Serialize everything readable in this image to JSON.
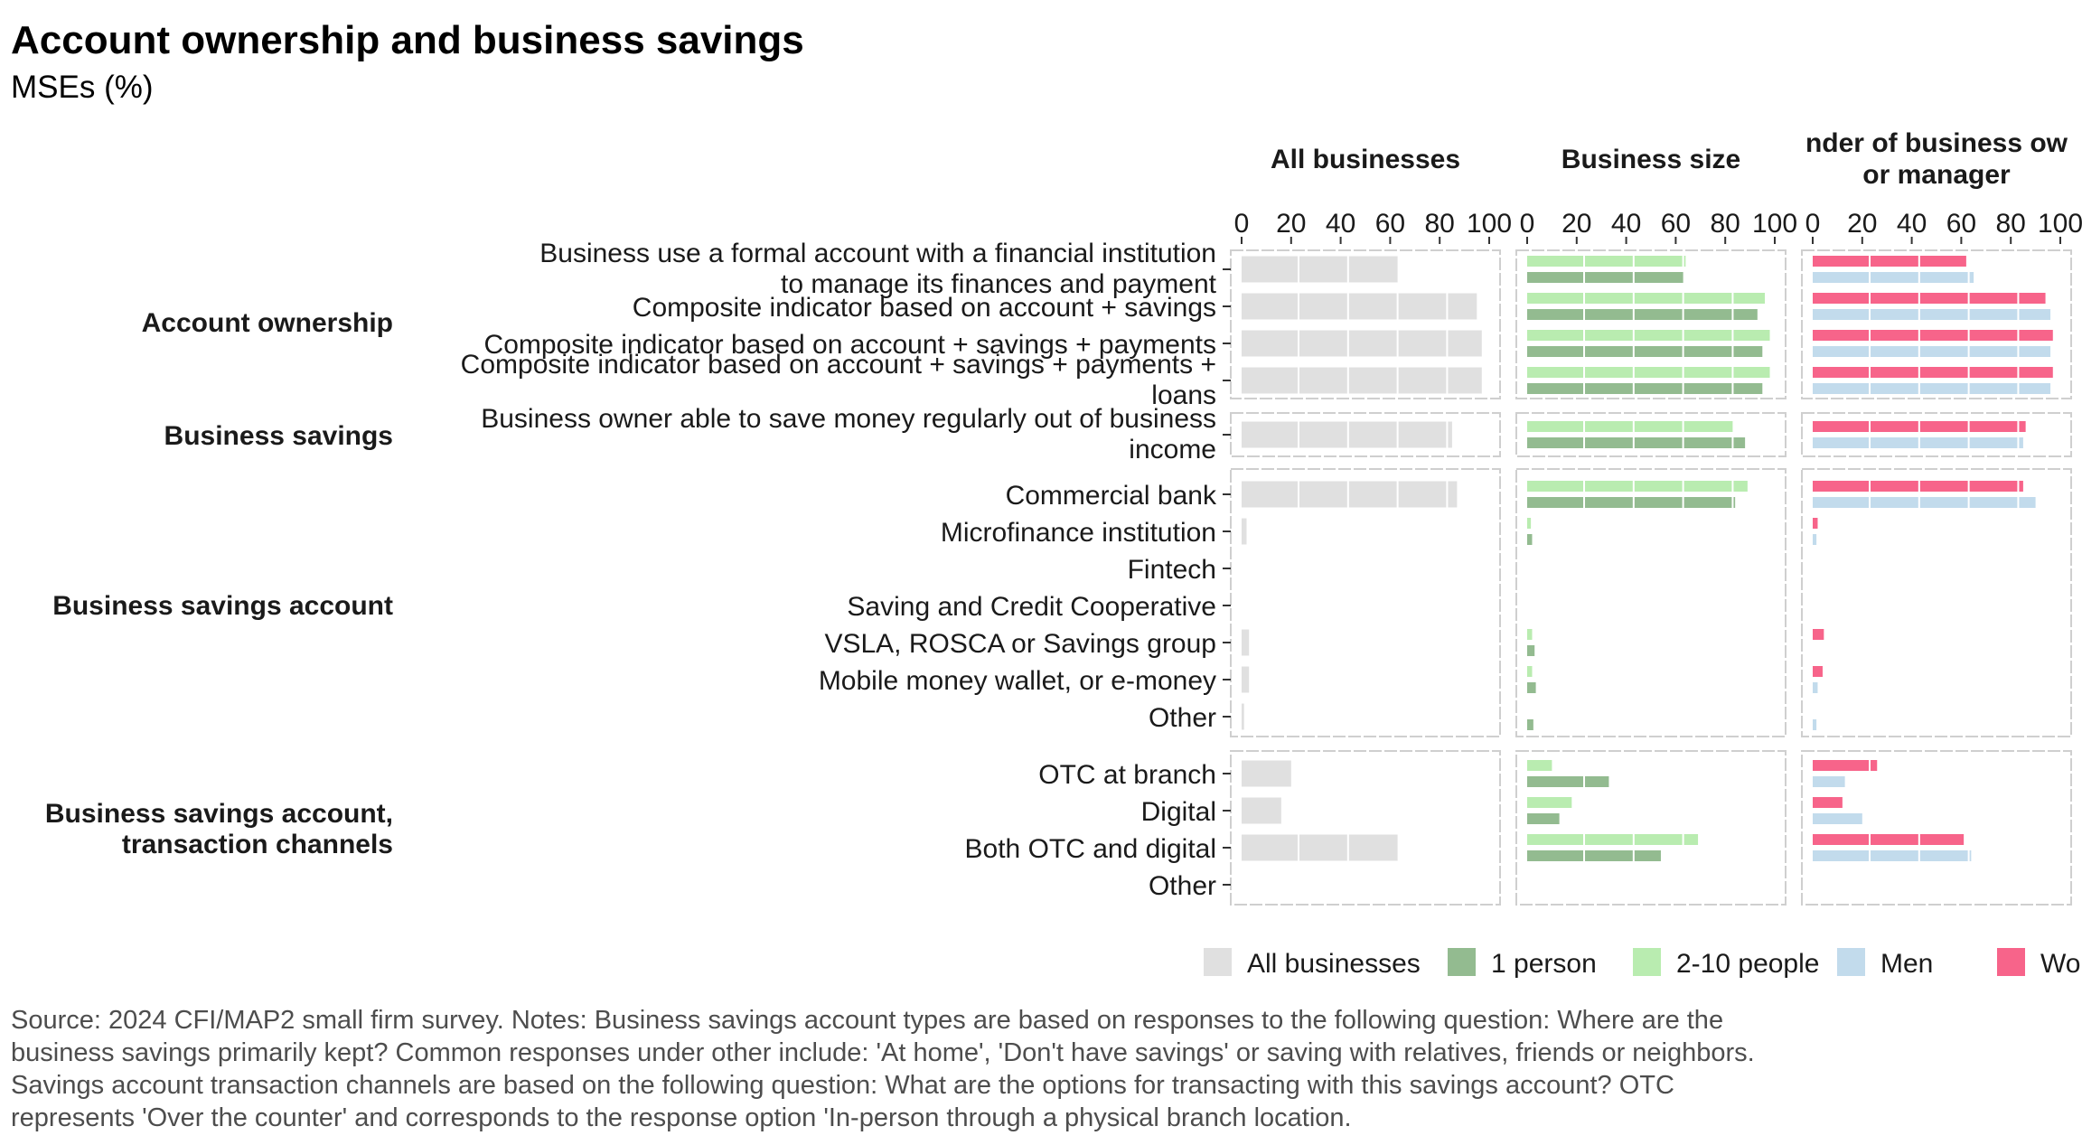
{
  "chart_data": {
    "type": "bar",
    "orientation": "horizontal",
    "title": "Account ownership and business savings",
    "subtitle": "MSEs (%)",
    "xlim": [
      0,
      100
    ],
    "x_ticks": [
      "0",
      "20",
      "40",
      "60",
      "80",
      "100"
    ],
    "grid": false,
    "legend_position": "bottom-right",
    "colors": {
      "All businesses": "#e0e0e0",
      "1 person": "#93bb90",
      "2-10 people": "#b9ecb0",
      "Men": "#c2dbec",
      "Women": "#f7648a"
    },
    "legend": [
      {
        "key": "All businesses",
        "label": "All businesses"
      },
      {
        "key": "1 person",
        "label": "1 person"
      },
      {
        "key": "2-10 people",
        "label": "2-10 people"
      },
      {
        "key": "Men",
        "label": "Men"
      },
      {
        "key": "Women",
        "label": "Wome"
      }
    ],
    "facets": [
      {
        "key": "all",
        "label": [
          "All businesses"
        ],
        "series": [
          "All businesses"
        ]
      },
      {
        "key": "size",
        "label": [
          "Business size"
        ],
        "series": [
          "2-10 people",
          "1 person"
        ]
      },
      {
        "key": "gender",
        "label": [
          "nder of business ow",
          "or manager"
        ],
        "series": [
          "Women",
          "Men"
        ]
      }
    ],
    "groups": [
      {
        "label": [
          "Account ownership"
        ],
        "rows": [
          {
            "label": [
              "Business use a formal account with a financial institution",
              "to manage its finances and payment"
            ],
            "values": {
              "All businesses": 63,
              "2-10 people": 64,
              "1 person": 63,
              "Women": 62,
              "Men": 65
            }
          },
          {
            "label": [
              "Composite indicator based on account + savings"
            ],
            "values": {
              "All businesses": 95,
              "2-10 people": 96,
              "1 person": 93,
              "Women": 94,
              "Men": 96
            }
          },
          {
            "label": [
              "Composite indicator based on account + savings + payments"
            ],
            "values": {
              "All businesses": 97,
              "2-10 people": 98,
              "1 person": 95,
              "Women": 97,
              "Men": 96
            }
          },
          {
            "label": [
              "Composite indicator based on account + savings + payments +",
              "loans"
            ],
            "values": {
              "All businesses": 97,
              "2-10 people": 98,
              "1 person": 95,
              "Women": 97,
              "Men": 96
            }
          }
        ]
      },
      {
        "label": [
          "Business savings"
        ],
        "rows": [
          {
            "label": [
              "Business owner able to save money regularly out of business",
              "income"
            ],
            "values": {
              "All businesses": 85,
              "2-10 people": 83,
              "1 person": 88,
              "Women": 86,
              "Men": 85
            }
          }
        ]
      },
      {
        "label": [
          "Business savings account"
        ],
        "rows": [
          {
            "label": [
              "Commercial bank"
            ],
            "values": {
              "All businesses": 87,
              "2-10 people": 89,
              "1 person": 84,
              "Women": 85,
              "Men": 90
            }
          },
          {
            "label": [
              "Microfinance institution"
            ],
            "values": {
              "All businesses": 2,
              "2-10 people": 1.5,
              "1 person": 2,
              "Women": 2,
              "Men": 1.5
            }
          },
          {
            "label": [
              "Fintech"
            ],
            "values": {
              "All businesses": 0,
              "2-10 people": 0,
              "1 person": 0,
              "Women": 0,
              "Men": 0
            }
          },
          {
            "label": [
              "Saving and Credit Cooperative"
            ],
            "values": {
              "All businesses": 0,
              "2-10 people": 0,
              "1 person": 0,
              "Women": 0,
              "Men": 0
            }
          },
          {
            "label": [
              "VSLA, ROSCA or Savings group"
            ],
            "values": {
              "All businesses": 3,
              "2-10 people": 2,
              "1 person": 3,
              "Women": 4.5,
              "Men": 0
            }
          },
          {
            "label": [
              "Mobile money wallet, or e-money"
            ],
            "values": {
              "All businesses": 3,
              "2-10 people": 2,
              "1 person": 3.5,
              "Women": 4,
              "Men": 2
            }
          },
          {
            "label": [
              "Other"
            ],
            "values": {
              "All businesses": 1,
              "2-10 people": 0,
              "1 person": 2.5,
              "Women": 0,
              "Men": 1.5
            }
          }
        ]
      },
      {
        "label": [
          "Business savings account,",
          "transaction channels"
        ],
        "rows": [
          {
            "label": [
              "OTC at branch"
            ],
            "values": {
              "All businesses": 20,
              "2-10 people": 10,
              "1 person": 33,
              "Women": 26,
              "Men": 13
            }
          },
          {
            "label": [
              "Digital"
            ],
            "values": {
              "All businesses": 16,
              "2-10 people": 18,
              "1 person": 13,
              "Women": 12,
              "Men": 20
            }
          },
          {
            "label": [
              "Both OTC and digital"
            ],
            "values": {
              "All businesses": 63,
              "2-10 people": 69,
              "1 person": 54,
              "Women": 61,
              "Men": 64
            }
          },
          {
            "label": [
              "Other"
            ],
            "values": {
              "All businesses": 0,
              "2-10 people": 0,
              "1 person": 0,
              "Women": 0,
              "Men": 0
            }
          }
        ]
      }
    ],
    "source": [
      "Source: 2024 CFI/MAP2 small firm survey. Notes: Business savings account types are based on responses to the following question: Where are the",
      "business savings primarily kept? Common responses under other include: 'At home', 'Don't have savings' or saving with relatives, friends or neighbors.",
      "Savings account transaction channels are based on the following question: What are the options for transacting with this savings account? OTC",
      "represents 'Over the counter' and corresponds to the response option 'In-person through a physical branch location."
    ]
  }
}
